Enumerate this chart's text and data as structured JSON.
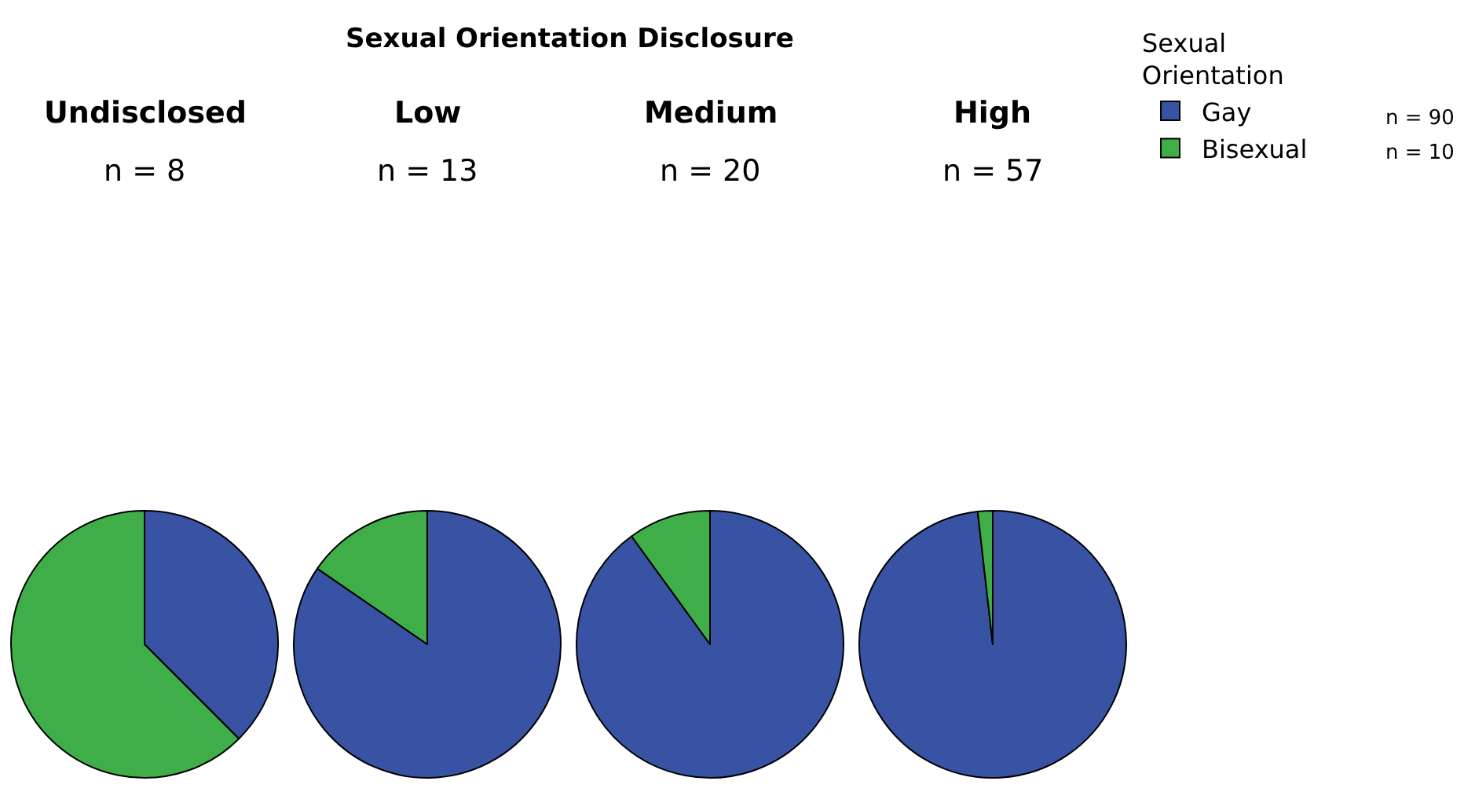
{
  "chart_data": [
    {
      "type": "pie",
      "title": "Undisclosed",
      "subtitle": "n = 8",
      "categories": [
        "Gay",
        "Bisexual"
      ],
      "values": [
        37.5,
        62.5
      ],
      "colors": [
        "#3953a4",
        "#3fae49"
      ],
      "legend": "top right",
      "legend_title": "Sexual Orientation",
      "annotations": [
        "Sexual Orientation Disclosure",
        "n = 90",
        "n = 10"
      ]
    },
    {
      "type": "pie",
      "title": "Low",
      "subtitle": "n = 13",
      "values": [
        84.6,
        15.4
      ],
      "colors": [
        "#3953a4",
        "#3fae49"
      ]
    },
    {
      "type": "pie",
      "title": "Medium",
      "subtitle": "n = 20",
      "values": [
        90,
        10
      ],
      "colors": [
        "#3953a4",
        "#3fae49"
      ]
    },
    {
      "type": "pie",
      "title": "High",
      "subtitle": "n = 57",
      "values": [
        98.2,
        1.8
      ],
      "colors": [
        "#3953a4",
        "#3fae49"
      ]
    }
  ]
}
